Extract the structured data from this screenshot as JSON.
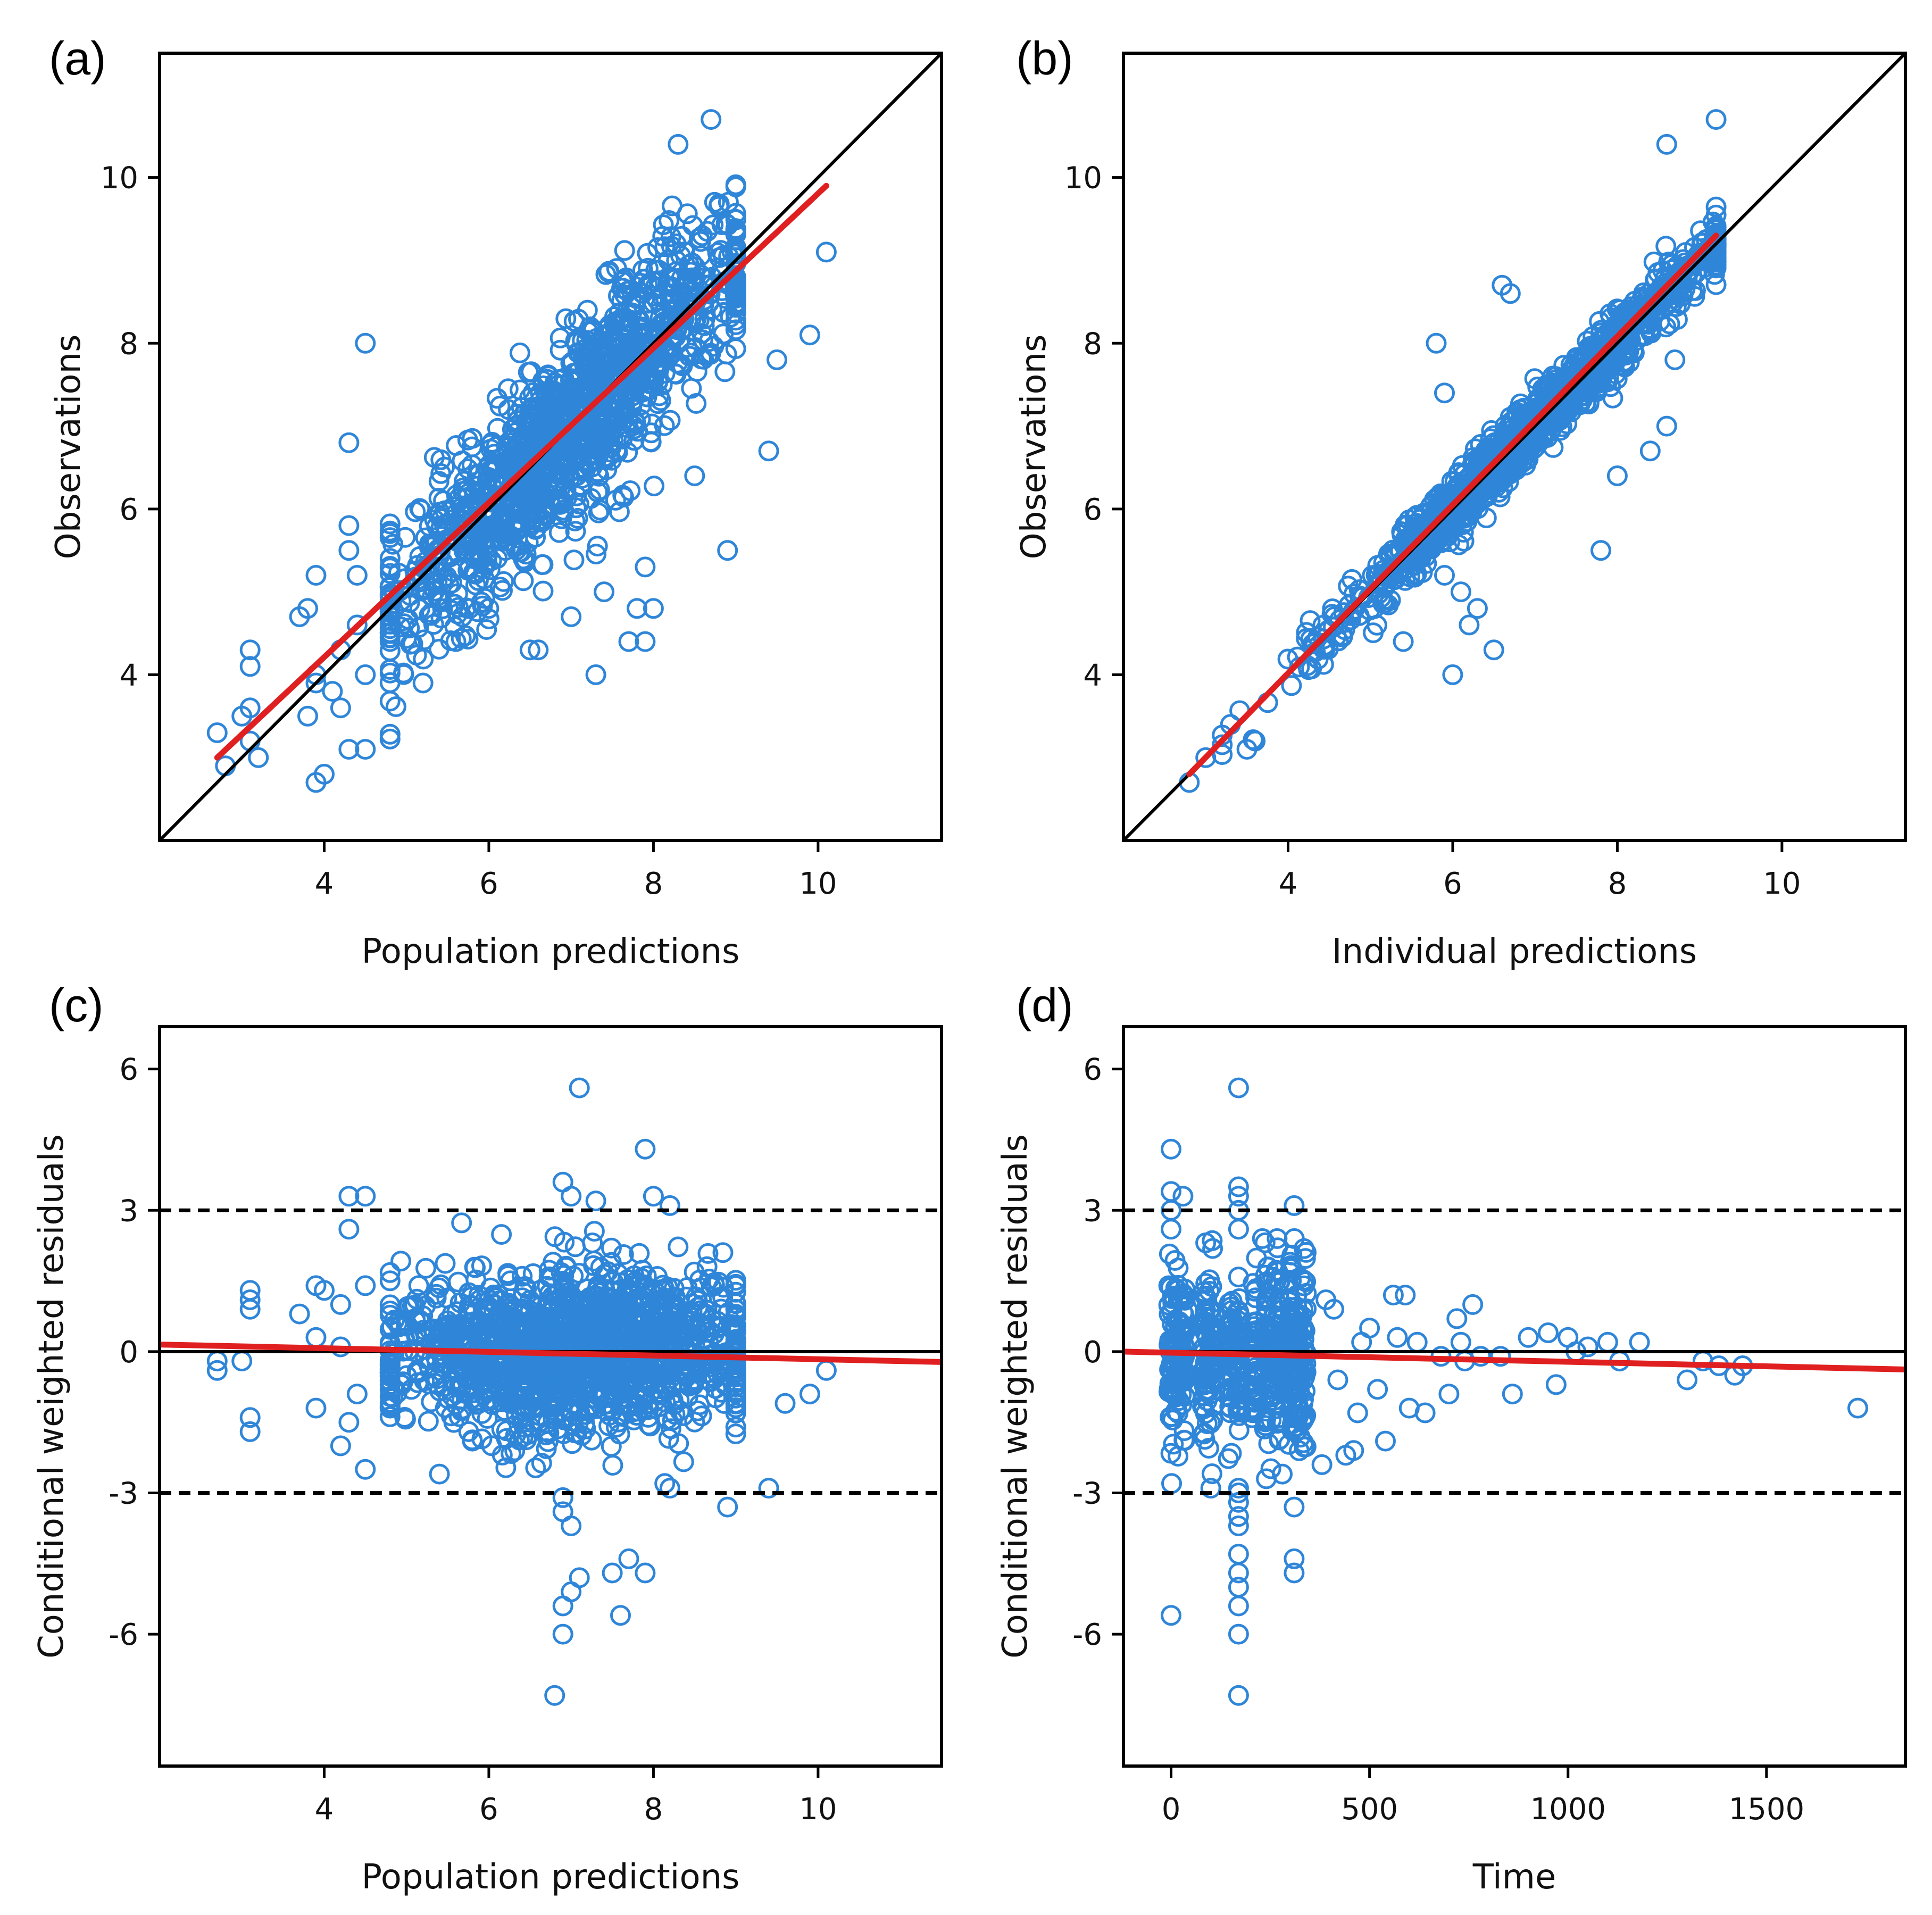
{
  "colors": {
    "points": "#2f86d8",
    "trend": "#e02020",
    "reference": "#000000"
  },
  "chart_data": [
    {
      "id": "a",
      "type": "scatter",
      "panel_label": "(a)",
      "xlabel": "Population predictions",
      "ylabel": "Observations",
      "xlim": [
        2,
        11.5
      ],
      "ylim": [
        2,
        11.5
      ],
      "xticks": [
        4,
        6,
        8,
        10
      ],
      "yticks": [
        4,
        6,
        8,
        10
      ],
      "reference": {
        "type": "identity"
      },
      "trend": [
        [
          2.7,
          3.0
        ],
        [
          10.1,
          9.9
        ]
      ],
      "cloud": {
        "n": 1300,
        "x_mean": 7.0,
        "x_sd": 1.15,
        "x_min": 4.8,
        "x_max": 9.0,
        "relation": [
          0,
          1
        ],
        "noise": 0.55,
        "y_min": 2.7,
        "y_max": 10.7
      },
      "outliers": [
        [
          4.5,
          8.0
        ],
        [
          4.3,
          6.8
        ],
        [
          8.3,
          10.4
        ],
        [
          8.7,
          10.7
        ],
        [
          10.1,
          9.1
        ],
        [
          9.9,
          8.1
        ],
        [
          9.5,
          7.8
        ],
        [
          9.4,
          6.7
        ],
        [
          8.9,
          5.5
        ],
        [
          7.3,
          4.0
        ],
        [
          7.7,
          4.4
        ],
        [
          7.9,
          5.3
        ],
        [
          7.8,
          4.8
        ],
        [
          8.0,
          4.8
        ],
        [
          7.9,
          4.4
        ],
        [
          8.5,
          6.4
        ],
        [
          2.7,
          3.3
        ],
        [
          2.8,
          2.9
        ],
        [
          3.1,
          4.3
        ],
        [
          3.1,
          4.1
        ],
        [
          3.1,
          3.6
        ],
        [
          3.0,
          3.5
        ],
        [
          3.1,
          3.2
        ],
        [
          3.2,
          3.0
        ],
        [
          3.9,
          2.7
        ],
        [
          4.0,
          2.8
        ],
        [
          3.8,
          3.5
        ],
        [
          3.9,
          3.9
        ],
        [
          4.1,
          3.8
        ],
        [
          4.3,
          3.1
        ],
        [
          4.5,
          3.1
        ],
        [
          4.2,
          4.3
        ],
        [
          4.4,
          4.6
        ],
        [
          4.3,
          5.5
        ],
        [
          4.3,
          5.8
        ],
        [
          3.9,
          5.2
        ],
        [
          3.8,
          4.8
        ],
        [
          3.7,
          4.7
        ],
        [
          4.4,
          5.2
        ],
        [
          4.2,
          3.6
        ],
        [
          3.9,
          4.0
        ],
        [
          4.5,
          4.0
        ],
        [
          6.2,
          5.5
        ],
        [
          6.5,
          4.3
        ],
        [
          6.6,
          4.3
        ],
        [
          7.0,
          4.7
        ],
        [
          5.6,
          4.4
        ],
        [
          5.2,
          3.9
        ],
        [
          6.0,
          4.8
        ],
        [
          7.4,
          5.0
        ]
      ]
    },
    {
      "id": "b",
      "type": "scatter",
      "panel_label": "(b)",
      "xlabel": "Individual predictions",
      "ylabel": "Observations",
      "xlim": [
        2,
        11.5
      ],
      "ylim": [
        2,
        11.5
      ],
      "xticks": [
        4,
        6,
        8,
        10
      ],
      "yticks": [
        4,
        6,
        8,
        10
      ],
      "reference": {
        "type": "identity"
      },
      "trend": [
        [
          2.8,
          2.8
        ],
        [
          9.2,
          9.3
        ]
      ],
      "cloud": {
        "n": 1300,
        "x_mean": 7.0,
        "x_sd": 1.2,
        "x_min": 3.2,
        "x_max": 9.2,
        "relation": [
          0,
          1
        ],
        "noise": 0.18,
        "y_min": 2.7,
        "y_max": 10.7
      },
      "outliers": [
        [
          5.8,
          8.0
        ],
        [
          5.9,
          7.4
        ],
        [
          6.6,
          8.7
        ],
        [
          6.7,
          8.6
        ],
        [
          8.6,
          10.4
        ],
        [
          9.2,
          10.7
        ],
        [
          7.8,
          5.5
        ],
        [
          6.0,
          4.0
        ],
        [
          6.5,
          4.3
        ],
        [
          6.2,
          4.6
        ],
        [
          6.3,
          4.8
        ],
        [
          6.1,
          5.0
        ],
        [
          5.4,
          4.4
        ],
        [
          5.9,
          5.2
        ],
        [
          8.4,
          6.7
        ],
        [
          8.6,
          7.0
        ],
        [
          8.7,
          7.8
        ],
        [
          8.0,
          6.4
        ],
        [
          2.8,
          2.7
        ],
        [
          3.0,
          3.0
        ],
        [
          3.3,
          3.4
        ],
        [
          3.5,
          3.1
        ],
        [
          3.6,
          3.2
        ]
      ]
    },
    {
      "id": "c",
      "type": "scatter",
      "panel_label": "(c)",
      "xlabel": "Population predictions",
      "ylabel": "Conditional weighted residuals",
      "xlim": [
        2,
        11.5
      ],
      "ylim": [
        -8.8,
        6.9
      ],
      "xticks": [
        4,
        6,
        8,
        10
      ],
      "yticks": [
        -6,
        -3,
        0,
        3,
        6
      ],
      "reference": {
        "type": "hlines",
        "solid": [
          0
        ],
        "dashed": [
          -3,
          3
        ]
      },
      "trend": [
        [
          2.0,
          0.15
        ],
        [
          11.5,
          -0.22
        ]
      ],
      "cloud": {
        "n": 1500,
        "x_mean": 7.0,
        "x_sd": 1.15,
        "x_min": 4.8,
        "x_max": 9.0,
        "relation": [
          0,
          0
        ],
        "noise": 0.85,
        "y_min": -2.8,
        "y_max": 2.8
      },
      "outliers": [
        [
          7.1,
          5.6
        ],
        [
          7.9,
          4.3
        ],
        [
          7.0,
          3.3
        ],
        [
          6.9,
          3.6
        ],
        [
          7.3,
          3.2
        ],
        [
          8.0,
          3.3
        ],
        [
          8.2,
          3.1
        ],
        [
          4.3,
          3.3
        ],
        [
          4.5,
          3.3
        ],
        [
          4.3,
          2.6
        ],
        [
          6.8,
          -7.3
        ],
        [
          6.9,
          -6.0
        ],
        [
          6.9,
          -5.4
        ],
        [
          7.0,
          -5.1
        ],
        [
          7.1,
          -4.8
        ],
        [
          7.5,
          -4.7
        ],
        [
          7.7,
          -4.4
        ],
        [
          7.9,
          -4.7
        ],
        [
          7.6,
          -5.6
        ],
        [
          6.9,
          -3.1
        ],
        [
          6.9,
          -3.4
        ],
        [
          7.0,
          -3.7
        ],
        [
          8.9,
          -3.3
        ],
        [
          9.4,
          -2.9
        ],
        [
          8.2,
          -2.9
        ],
        [
          10.1,
          -0.4
        ],
        [
          9.9,
          -0.9
        ],
        [
          9.6,
          -1.1
        ],
        [
          2.7,
          -0.2
        ],
        [
          2.7,
          -0.4
        ],
        [
          3.1,
          1.3
        ],
        [
          3.1,
          1.1
        ],
        [
          3.1,
          0.9
        ],
        [
          3.0,
          -0.2
        ],
        [
          3.1,
          -1.4
        ],
        [
          3.1,
          -1.7
        ],
        [
          4.2,
          -2.0
        ],
        [
          4.5,
          -2.5
        ],
        [
          5.4,
          -2.6
        ],
        [
          5.8,
          -1.9
        ],
        [
          3.9,
          1.4
        ],
        [
          4.0,
          1.3
        ],
        [
          3.7,
          0.8
        ],
        [
          3.9,
          -1.2
        ],
        [
          4.3,
          -1.5
        ],
        [
          3.9,
          0.3
        ],
        [
          4.2,
          0.1
        ],
        [
          4.4,
          -0.9
        ],
        [
          4.5,
          1.4
        ],
        [
          4.2,
          1.0
        ]
      ]
    },
    {
      "id": "d",
      "type": "scatter",
      "panel_label": "(d)",
      "xlabel": "Time",
      "ylabel": "Conditional weighted residuals",
      "xlim": [
        -120,
        1850
      ],
      "ylim": [
        -8.8,
        6.9
      ],
      "xticks": [
        0,
        500,
        1000,
        1500
      ],
      "yticks": [
        -6,
        -3,
        0,
        3,
        6
      ],
      "reference": {
        "type": "hlines",
        "solid": [
          0
        ],
        "dashed": [
          -3,
          3
        ]
      },
      "trend": [
        [
          -120,
          0.0
        ],
        [
          1850,
          -0.38
        ]
      ],
      "bands": {
        "xs": [
          0,
          15,
          30,
          85,
          100,
          150,
          170,
          210,
          240,
          255,
          270,
          300,
          310,
          320,
          335
        ],
        "n_each": 42,
        "x_jitter": 6,
        "y_sd": 0.95,
        "y_min": -2.8,
        "y_max": 2.4
      },
      "outliers": [
        [
          0,
          -5.6
        ],
        [
          0,
          4.3
        ],
        [
          0,
          3.4
        ],
        [
          0,
          3.0
        ],
        [
          0,
          2.6
        ],
        [
          30,
          3.3
        ],
        [
          170,
          5.6
        ],
        [
          170,
          3.5
        ],
        [
          170,
          3.3
        ],
        [
          170,
          3.0
        ],
        [
          170,
          2.6
        ],
        [
          170,
          -7.3
        ],
        [
          170,
          -6.0
        ],
        [
          170,
          -5.4
        ],
        [
          170,
          -5.0
        ],
        [
          170,
          -4.7
        ],
        [
          170,
          -4.3
        ],
        [
          170,
          -3.7
        ],
        [
          170,
          -3.5
        ],
        [
          170,
          -3.2
        ],
        [
          170,
          -2.9
        ],
        [
          170,
          -3.0
        ],
        [
          310,
          3.1
        ],
        [
          310,
          -4.4
        ],
        [
          310,
          -4.7
        ],
        [
          310,
          -3.3
        ],
        [
          100,
          -2.9
        ],
        [
          230,
          2.4
        ],
        [
          240,
          -2.7
        ],
        [
          280,
          -2.6
        ],
        [
          380,
          -2.4
        ],
        [
          390,
          1.1
        ],
        [
          410,
          0.9
        ],
        [
          420,
          -0.6
        ],
        [
          440,
          -2.2
        ],
        [
          460,
          -2.1
        ],
        [
          470,
          -1.3
        ],
        [
          480,
          0.2
        ],
        [
          500,
          0.5
        ],
        [
          520,
          -0.8
        ],
        [
          540,
          -1.9
        ],
        [
          560,
          1.2
        ],
        [
          570,
          0.3
        ],
        [
          590,
          1.2
        ],
        [
          600,
          -1.2
        ],
        [
          620,
          0.2
        ],
        [
          640,
          -1.3
        ],
        [
          680,
          -0.1
        ],
        [
          700,
          -0.9
        ],
        [
          720,
          0.7
        ],
        [
          730,
          0.2
        ],
        [
          740,
          -0.2
        ],
        [
          760,
          1.0
        ],
        [
          780,
          -0.1
        ],
        [
          830,
          -0.1
        ],
        [
          860,
          -0.9
        ],
        [
          900,
          0.3
        ],
        [
          950,
          0.4
        ],
        [
          970,
          -0.7
        ],
        [
          1000,
          0.3
        ],
        [
          1020,
          0.0
        ],
        [
          1050,
          0.1
        ],
        [
          1100,
          0.2
        ],
        [
          1130,
          -0.2
        ],
        [
          1180,
          0.2
        ],
        [
          1300,
          -0.6
        ],
        [
          1340,
          -0.2
        ],
        [
          1380,
          -0.3
        ],
        [
          1420,
          -0.5
        ],
        [
          1440,
          -0.3
        ],
        [
          1730,
          -1.2
        ]
      ]
    }
  ]
}
